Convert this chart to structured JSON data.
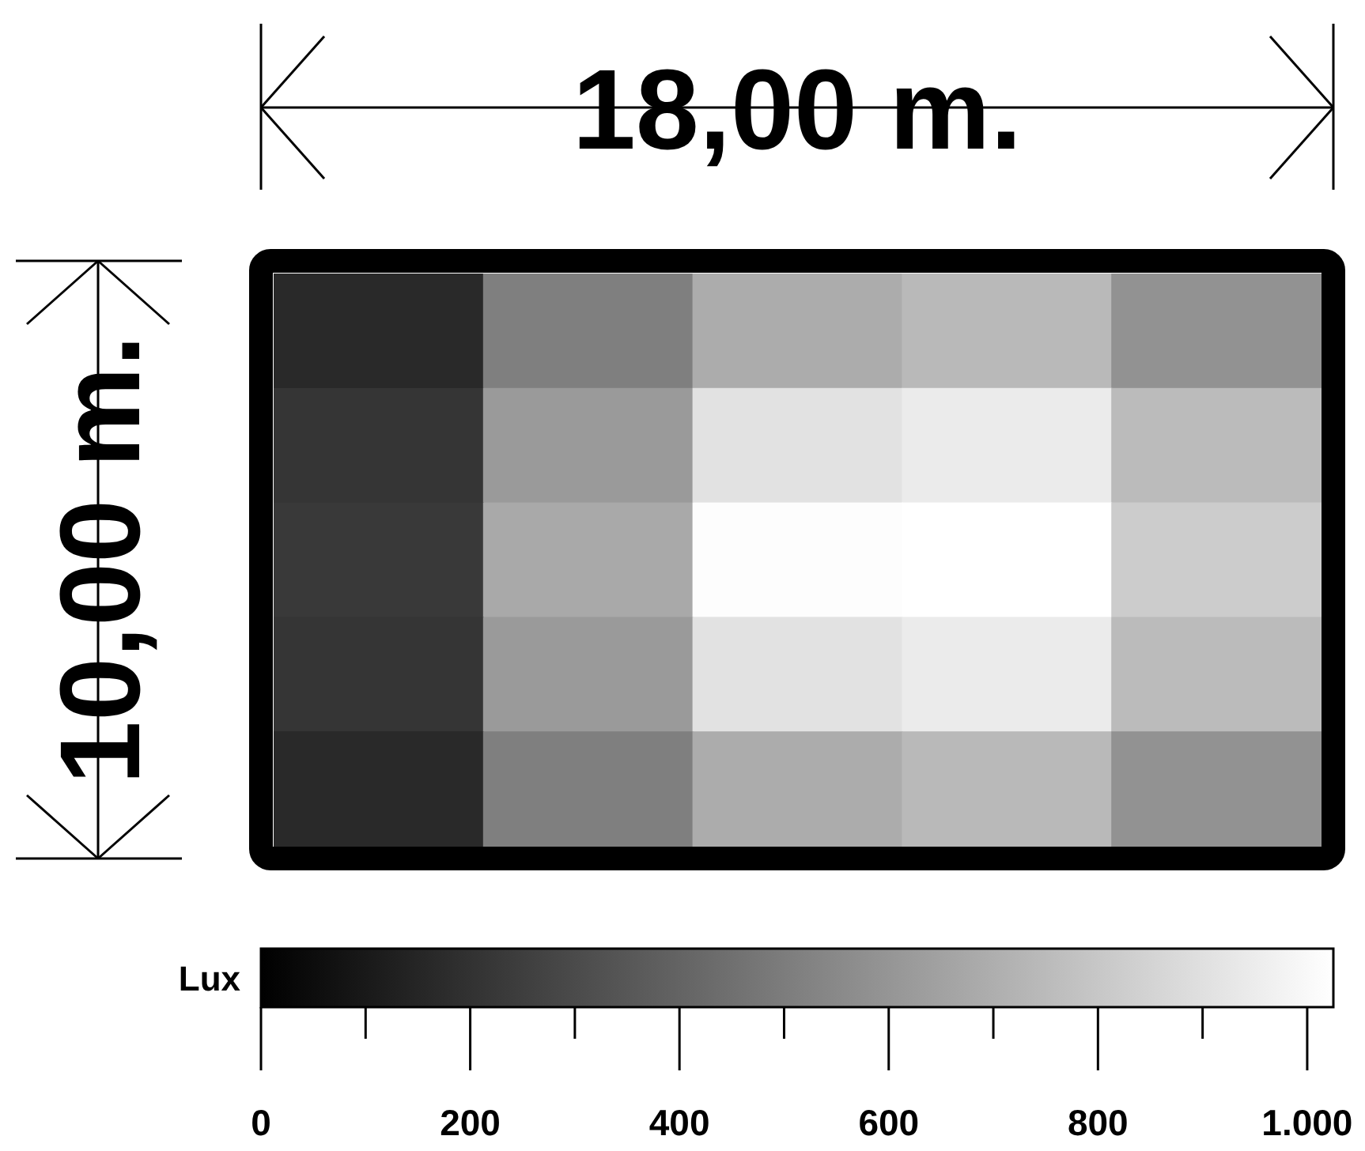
{
  "chart_data": {
    "type": "heatmap",
    "annotations": [
      "18,00 m.",
      "10,00 m."
    ],
    "clabel": "Lux",
    "categories": [
      null,
      null,
      null,
      null,
      null
    ],
    "y_categories": [
      null,
      null,
      null,
      null,
      null
    ],
    "cells": [
      [
        165,
        510,
        690,
        745,
        585
      ],
      [
        215,
        620,
        910,
        945,
        750
      ],
      [
        230,
        680,
        1015,
        1025,
        820
      ],
      [
        215,
        620,
        910,
        945,
        750
      ],
      [
        165,
        510,
        690,
        745,
        585
      ]
    ],
    "clim": [
      0,
      1025
    ],
    "cticks": [
      0,
      {
        "value": 100,
        "label": null
      },
      200,
      {
        "value": 300,
        "label": null
      },
      400,
      {
        "value": 500,
        "label": null
      },
      600,
      {
        "value": 700,
        "label": null
      },
      800,
      {
        "value": 900,
        "label": null
      },
      {
        "value": 1000,
        "label": "1.000"
      }
    ]
  }
}
